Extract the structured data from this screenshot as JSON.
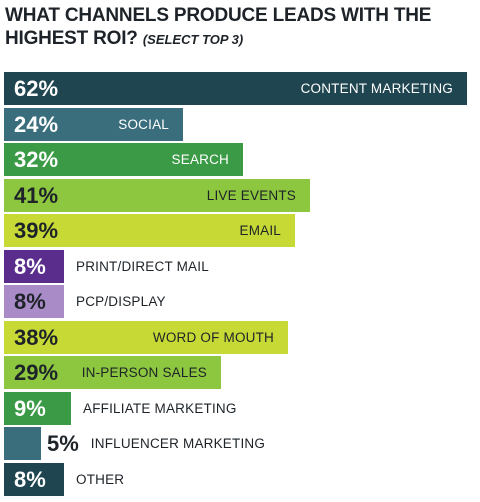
{
  "header": {
    "title": "WHAT CHANNELS PRODUCE LEADS WITH THE HIGHEST ROI?",
    "subtitle": "(SELECT TOP 3)"
  },
  "chart_data": {
    "type": "bar",
    "orientation": "horizontal",
    "title": "WHAT CHANNELS PRODUCE LEADS WITH THE HIGHEST ROI? (SELECT TOP 3)",
    "categories": [
      "CONTENT MARKETING",
      "SOCIAL",
      "SEARCH",
      "LIVE EVENTS",
      "EMAIL",
      "PRINT/DIRECT MAIL",
      "PCP/DISPLAY",
      "WORD OF MOUTH",
      "IN-PERSON SALES",
      "AFFILIATE MARKETING",
      "INFLUENCER MARKETING",
      "OTHER"
    ],
    "values": [
      62,
      24,
      32,
      41,
      39,
      8,
      8,
      38,
      29,
      9,
      5,
      8
    ],
    "labels": [
      "62%",
      "24%",
      "32%",
      "41%",
      "39%",
      "8%",
      "8%",
      "38%",
      "29%",
      "9%",
      "5%",
      "8%"
    ],
    "colors": [
      "#1f4550",
      "#3a6e7d",
      "#3b9a46",
      "#8dc63f",
      "#c7d935",
      "#5a2d8c",
      "#a98bc8",
      "#c7d935",
      "#8dc63f",
      "#3b9a46",
      "#3a6e7d",
      "#1f4550"
    ],
    "xlim": [
      0,
      62
    ]
  }
}
